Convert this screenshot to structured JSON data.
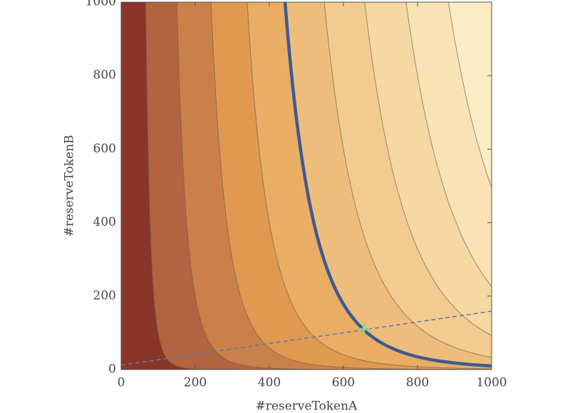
{
  "chart_data": {
    "type": "contour",
    "x_label": "#reserveTokenA",
    "y_label": "#reserveTokenB",
    "xlim": [
      0,
      1000
    ],
    "ylim": [
      0,
      1000
    ],
    "xticks": [
      0,
      200,
      400,
      600,
      800,
      1000
    ],
    "yticks": [
      0,
      200,
      400,
      600,
      800,
      1000
    ],
    "exponent_x": 0.85,
    "exponent_y": 0.15,
    "levels": [
      100,
      200,
      300,
      400,
      500,
      600,
      700,
      800,
      900,
      1000
    ],
    "highlight_level": 500,
    "highlight_color": "#3d5a94",
    "colors": [
      "#8a3529",
      "#b2633f",
      "#cc8049",
      "#e0994f",
      "#eaad64",
      "#efbd7b",
      "#f3cb90",
      "#f6d8a2",
      "#f9e3b4",
      "#fbecc6",
      "#fdf6dc"
    ],
    "line_color": "#6f6452",
    "dashed_line": {
      "x": [
        0,
        1000
      ],
      "y": [
        12,
        159
      ],
      "color": "#5b7bb4"
    },
    "marker": {
      "x": 655,
      "y": 110,
      "color": "#8fd08a"
    }
  }
}
